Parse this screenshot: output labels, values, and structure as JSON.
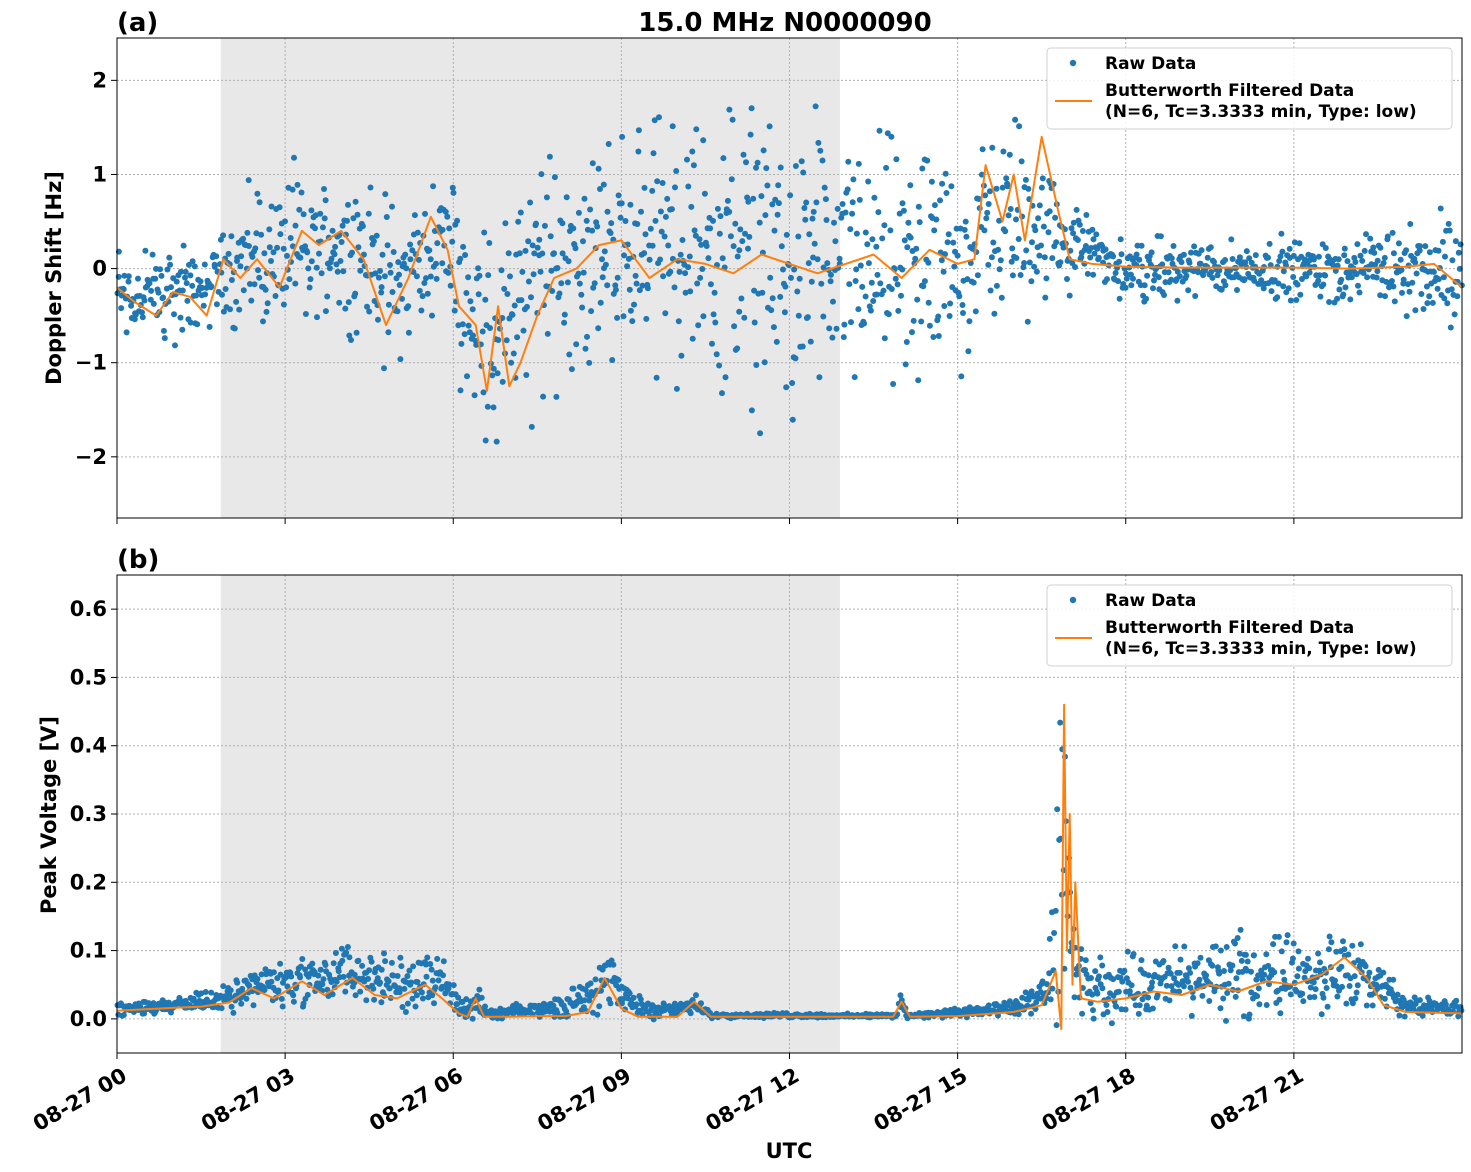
{
  "figure": {
    "title": "15.0 MHz N0000090",
    "xlabel": "UTC"
  },
  "colors": {
    "raw": "#1f77b4",
    "filtered": "#ff7f0e",
    "shade": "#e8e8e8",
    "grid": "#b0b0b0"
  },
  "chart_data": [
    {
      "type": "scatter",
      "panel_label": "(a)",
      "ylabel": "Doppler Shift [Hz]",
      "x_unit": "hours UTC, 2024-08-27",
      "xlim": [
        0,
        24
      ],
      "ylim": [
        -2.65,
        2.45
      ],
      "y_ticks": [
        -2,
        -1,
        0,
        1,
        2
      ],
      "y_tick_labels": [
        "−2",
        "−1",
        "0",
        "1",
        "2"
      ],
      "grid": true,
      "legend_position": "top-right",
      "shaded_interval": [
        1.85,
        12.9
      ],
      "legend": [
        "Raw Data",
        "Butterworth Filtered Data",
        "(N=6, Tc=3.3333 min, Type: low)"
      ],
      "series": [
        {
          "name": "Raw Data",
          "style": "points",
          "envelope": {
            "x": [
              0,
              0.5,
              1.0,
              1.5,
              1.85,
              2.5,
              3.3,
              4.0,
              5.0,
              5.8,
              6.3,
              6.8,
              7.3,
              8.0,
              9.0,
              10.0,
              10.5,
              11.5,
              12.2,
              13.0,
              14.0,
              15.0,
              15.5,
              16.2,
              16.8,
              17.5,
              18.0,
              20.0,
              22.0,
              23.0,
              24.0
            ],
            "low": [
              -0.8,
              -0.8,
              -0.7,
              -0.6,
              -0.5,
              -0.6,
              -0.5,
              -0.4,
              -0.9,
              -0.3,
              -1.5,
              -1.6,
              -1.4,
              -1.0,
              -0.6,
              -0.9,
              -1.0,
              -1.2,
              -1.3,
              -1.2,
              -1.1,
              -0.9,
              -0.4,
              -0.4,
              -0.2,
              -0.1,
              -0.3,
              -0.25,
              -0.3,
              -0.4,
              -0.6
            ],
            "high": [
              0.3,
              0.2,
              0.3,
              0.1,
              0.5,
              0.8,
              0.9,
              1.0,
              0.5,
              0.9,
              0.7,
              0.2,
              0.9,
              1.1,
              1.2,
              1.5,
              1.5,
              1.4,
              1.3,
              1.2,
              1.1,
              0.9,
              1.3,
              1.5,
              0.8,
              0.4,
              0.25,
              0.25,
              0.3,
              0.45,
              0.5
            ]
          }
        },
        {
          "name": "Butterworth Filtered Data",
          "style": "line",
          "x": [
            0,
            0.3,
            0.7,
            1.0,
            1.3,
            1.6,
            1.9,
            2.2,
            2.5,
            2.9,
            3.3,
            3.6,
            4.0,
            4.4,
            4.8,
            5.2,
            5.6,
            5.9,
            6.1,
            6.4,
            6.6,
            6.8,
            7.0,
            7.2,
            7.5,
            7.8,
            8.2,
            8.6,
            9.0,
            9.5,
            10.0,
            10.5,
            11.0,
            11.5,
            12.0,
            12.5,
            13.0,
            13.5,
            14.0,
            14.5,
            15.0,
            15.3,
            15.5,
            15.8,
            16.0,
            16.2,
            16.5,
            16.8,
            17.0,
            17.4,
            18.0,
            19.0,
            20.0,
            21.0,
            22.0,
            23.0,
            23.5,
            24.0
          ],
          "y": [
            -0.2,
            -0.35,
            -0.5,
            -0.25,
            -0.3,
            -0.5,
            0.1,
            -0.1,
            0.1,
            -0.2,
            0.4,
            0.25,
            0.4,
            0.1,
            -0.6,
            -0.1,
            0.55,
            0.2,
            -0.4,
            -0.6,
            -1.3,
            -0.4,
            -1.25,
            -1.0,
            -0.5,
            -0.1,
            0.0,
            0.25,
            0.3,
            -0.1,
            0.1,
            0.05,
            -0.05,
            0.15,
            0.05,
            -0.05,
            0.05,
            0.15,
            -0.1,
            0.2,
            0.05,
            0.1,
            1.1,
            0.5,
            1.0,
            0.3,
            1.4,
            0.6,
            0.1,
            0.05,
            0.02,
            0.01,
            0.01,
            0.01,
            0.0,
            0.02,
            0.05,
            -0.2
          ]
        }
      ]
    },
    {
      "type": "scatter",
      "panel_label": "(b)",
      "ylabel": "Peak Voltage [V]",
      "x_unit": "hours UTC, 2024-08-27",
      "xlim": [
        0,
        24
      ],
      "ylim": [
        -0.05,
        0.65
      ],
      "y_ticks": [
        0.0,
        0.1,
        0.2,
        0.3,
        0.4,
        0.5,
        0.6
      ],
      "y_tick_labels": [
        "0.0",
        "0.1",
        "0.2",
        "0.3",
        "0.4",
        "0.5",
        "0.6"
      ],
      "x_ticks": [
        0,
        3,
        6,
        9,
        12,
        15,
        18,
        21
      ],
      "x_tick_labels": [
        "08-27 00",
        "08-27 03",
        "08-27 06",
        "08-27 09",
        "08-27 12",
        "08-27 15",
        "08-27 18",
        "08-27 21"
      ],
      "grid": true,
      "legend_position": "top-right",
      "shaded_interval": [
        1.85,
        12.9
      ],
      "legend": [
        "Raw Data",
        "Butterworth Filtered Data",
        "(N=6, Tc=3.3333 min, Type: low)"
      ],
      "series": [
        {
          "name": "Raw Data",
          "style": "points",
          "envelope": {
            "x": [
              0,
              1.0,
              2.0,
              2.4,
              3.3,
              4.2,
              5.0,
              5.7,
              6.2,
              6.4,
              6.6,
              7.5,
              8.0,
              8.7,
              9.3,
              10.0,
              10.3,
              10.6,
              11.0,
              12.0,
              13.0,
              13.9,
              14.0,
              14.1,
              15.0,
              16.0,
              16.6,
              16.8,
              16.9,
              17.1,
              17.4,
              18.0,
              19.0,
              20.0,
              21.0,
              22.0,
              22.5,
              23.0,
              24.0
            ],
            "low": [
              0.005,
              0.01,
              0.012,
              0.02,
              0.02,
              0.025,
              0.015,
              0.02,
              0.002,
              0.0,
              0.0,
              0.004,
              0.005,
              0.02,
              0.005,
              0.003,
              0.008,
              0.002,
              0.002,
              0.002,
              0.002,
              0.002,
              0.01,
              0.002,
              0.002,
              0.005,
              0.01,
              0.02,
              0.0,
              0.01,
              0.005,
              0.01,
              0.01,
              0.015,
              0.015,
              0.015,
              0.01,
              0.005,
              0.005
            ],
            "high": [
              0.025,
              0.03,
              0.045,
              0.08,
              0.09,
              0.11,
              0.08,
              0.1,
              0.03,
              0.05,
              0.01,
              0.025,
              0.03,
              0.1,
              0.03,
              0.02,
              0.035,
              0.01,
              0.008,
              0.008,
              0.007,
              0.007,
              0.045,
              0.007,
              0.015,
              0.025,
              0.06,
              0.35,
              0.6,
              0.1,
              0.08,
              0.09,
              0.1,
              0.11,
              0.12,
              0.11,
              0.09,
              0.03,
              0.025
            ]
          }
        },
        {
          "name": "Butterworth Filtered Data",
          "style": "line",
          "x": [
            0,
            0.5,
            1.0,
            1.5,
            2.0,
            2.4,
            2.8,
            3.3,
            3.7,
            4.2,
            4.6,
            5.0,
            5.5,
            5.8,
            6.1,
            6.25,
            6.4,
            6.55,
            7.0,
            7.5,
            8.0,
            8.4,
            8.7,
            9.0,
            9.3,
            10.0,
            10.3,
            10.6,
            11.0,
            12.0,
            13.0,
            13.85,
            14.0,
            14.15,
            15.0,
            16.0,
            16.5,
            16.75,
            16.85,
            16.9,
            16.95,
            17.0,
            17.05,
            17.1,
            17.2,
            17.5,
            18.0,
            18.5,
            19.0,
            19.5,
            20.0,
            20.5,
            21.0,
            21.5,
            21.9,
            22.3,
            22.6,
            23.0,
            24.0
          ],
          "y": [
            0.012,
            0.014,
            0.016,
            0.018,
            0.024,
            0.045,
            0.03,
            0.055,
            0.035,
            0.06,
            0.035,
            0.03,
            0.05,
            0.03,
            0.008,
            0.003,
            0.03,
            0.003,
            0.003,
            0.004,
            0.004,
            0.01,
            0.06,
            0.015,
            0.003,
            0.003,
            0.025,
            0.003,
            0.003,
            0.003,
            0.003,
            0.003,
            0.025,
            0.003,
            0.004,
            0.01,
            0.02,
            0.07,
            -0.015,
            0.46,
            0.1,
            0.3,
            0.05,
            0.2,
            0.03,
            0.025,
            0.03,
            0.04,
            0.035,
            0.05,
            0.04,
            0.055,
            0.05,
            0.065,
            0.09,
            0.06,
            0.02,
            0.01,
            0.008
          ]
        }
      ]
    }
  ]
}
